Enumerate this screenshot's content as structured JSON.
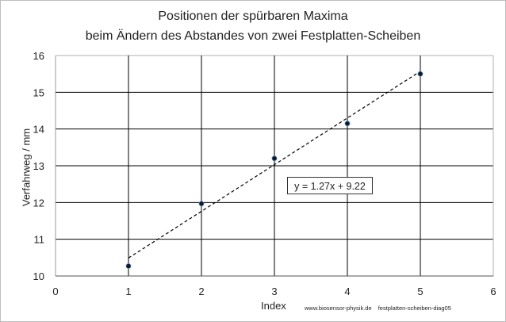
{
  "chart_data": {
    "type": "scatter",
    "title": "Positionen der spürbaren Maxima",
    "subtitle": "beim Ändern des Abstandes von zwei Festplatten-Scheiben",
    "xlabel": "Index",
    "ylabel": "Verfahrweg / mm",
    "xlim": [
      0,
      6
    ],
    "ylim": [
      10,
      16
    ],
    "xticks": [
      "0",
      "1",
      "2",
      "3",
      "4",
      "5",
      "6"
    ],
    "yticks": [
      "10",
      "11",
      "12",
      "13",
      "14",
      "15",
      "16"
    ],
    "grid": true,
    "series": [
      {
        "x": [
          1,
          2,
          3,
          4,
          5
        ],
        "values": [
          10.27,
          11.97,
          13.2,
          14.15,
          15.5
        ]
      }
    ],
    "trendline": {
      "slope": 1.27,
      "intercept": 9.22,
      "x_range": [
        1,
        5
      ],
      "style": "dashed",
      "equation": "y = 1.27x + 9.22"
    },
    "colors": {
      "marker": "#0b1a2e",
      "grid": "#000000",
      "trendline": "#000000"
    }
  },
  "source_text": [
    "www.biosensor-physik.de",
    "festplatten-scheiben-diag05"
  ]
}
